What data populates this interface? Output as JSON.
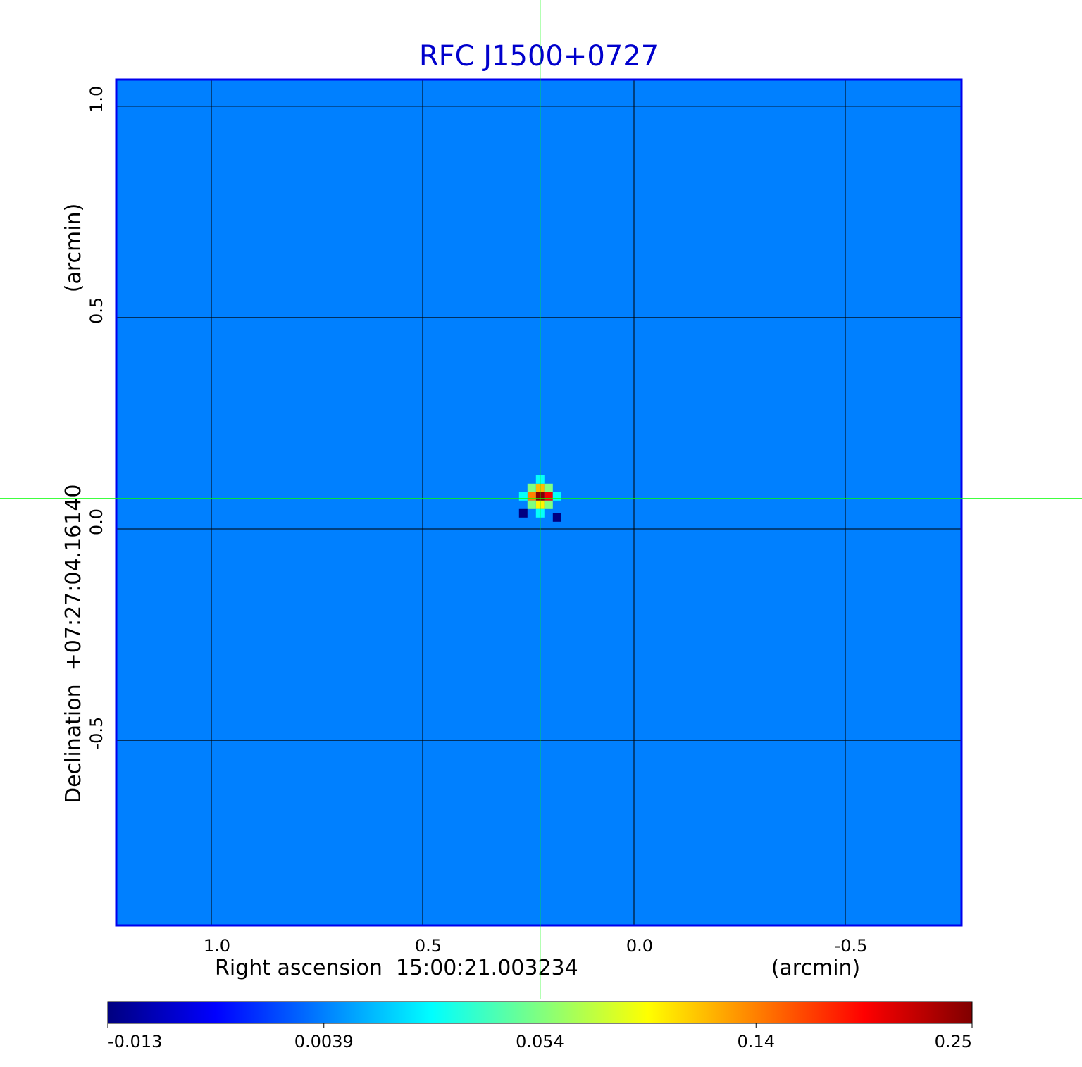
{
  "chart_data": {
    "type": "image",
    "title": "RFC J1500+0727",
    "xlabel": "Right ascension  15:00:21.003234",
    "xunit": "(arcmin)",
    "ylabel": "Declination  +07:27:04.16140",
    "yunit": "(arcmin)",
    "xlim": [
      1.225,
      -0.775
    ],
    "ylim": [
      -0.938,
      1.063
    ],
    "xticks": [
      {
        "value": 1,
        "label": "1.0"
      },
      {
        "value": 0.5,
        "label": "0.5"
      },
      {
        "value": 0,
        "label": "0.0"
      },
      {
        "value": -0.5,
        "label": "-0.5"
      }
    ],
    "yticks": [
      {
        "value": 1,
        "label": "1.0"
      },
      {
        "value": 0.5,
        "label": "0.5"
      },
      {
        "value": 0,
        "label": "0.0"
      },
      {
        "value": -0.5,
        "label": "-0.5"
      }
    ],
    "grid": true,
    "colormap": "jet",
    "colorbar_ticks": [
      -0.013,
      0.0039,
      0.054,
      0.14,
      0.25
    ],
    "background": 0.0039,
    "pixel_size": 0.02,
    "pixels": [
      {
        "x": 0.222,
        "y": 0.077,
        "v": 0.25
      },
      {
        "x": 0.202,
        "y": 0.077,
        "v": 0.2
      },
      {
        "x": 0.242,
        "y": 0.077,
        "v": 0.14
      },
      {
        "x": 0.222,
        "y": 0.097,
        "v": 0.12
      },
      {
        "x": 0.222,
        "y": 0.057,
        "v": 0.1
      },
      {
        "x": 0.202,
        "y": 0.097,
        "v": 0.054
      },
      {
        "x": 0.242,
        "y": 0.097,
        "v": 0.054
      },
      {
        "x": 0.202,
        "y": 0.057,
        "v": 0.054
      },
      {
        "x": 0.242,
        "y": 0.057,
        "v": 0.054
      },
      {
        "x": 0.182,
        "y": 0.077,
        "v": 0.03
      },
      {
        "x": 0.262,
        "y": 0.077,
        "v": 0.03
      },
      {
        "x": 0.222,
        "y": 0.117,
        "v": 0.03
      },
      {
        "x": 0.222,
        "y": 0.037,
        "v": 0.03
      },
      {
        "x": 0.262,
        "y": 0.037,
        "v": -0.013
      },
      {
        "x": 0.182,
        "y": 0.027,
        "v": -0.013
      }
    ],
    "crosshair": {
      "x": 0.222,
      "y": 0.072,
      "color": "#00ff00"
    }
  }
}
